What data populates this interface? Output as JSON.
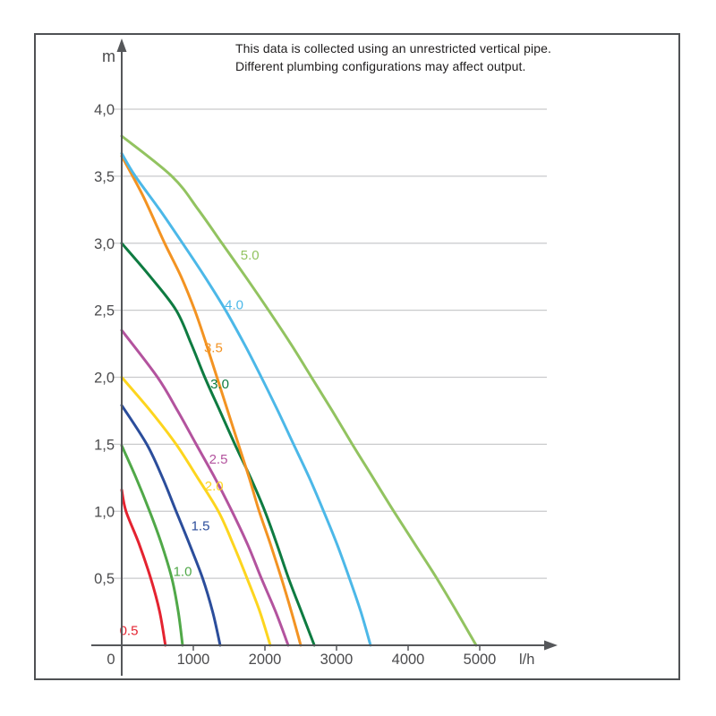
{
  "note": {
    "line1": "This data is collected using an unrestricted vertical pipe.",
    "line2": "Different plumbing configurations may affect output."
  },
  "axes": {
    "y_unit": "m",
    "x_unit": "l/h",
    "origin_label": "0",
    "y_ticks": [
      {
        "label": "4,0",
        "value": 4.0
      },
      {
        "label": "3,5",
        "value": 3.5
      },
      {
        "label": "3,0",
        "value": 3.0
      },
      {
        "label": "2,5",
        "value": 2.5
      },
      {
        "label": "2,0",
        "value": 2.0
      },
      {
        "label": "1,5",
        "value": 1.5
      },
      {
        "label": "1,0",
        "value": 1.0
      },
      {
        "label": "0,5",
        "value": 0.5
      }
    ],
    "x_ticks": [
      {
        "label": "1000",
        "value": 1000
      },
      {
        "label": "2000",
        "value": 2000
      },
      {
        "label": "3000",
        "value": 3000
      },
      {
        "label": "4000",
        "value": 4000
      },
      {
        "label": "5000",
        "value": 5000
      }
    ]
  },
  "chart_data": {
    "type": "line",
    "title": "",
    "xlabel": "l/h",
    "ylabel": "m",
    "xlim": [
      0,
      5000
    ],
    "ylim": [
      0,
      4.0
    ],
    "grid": "horizontal-only",
    "legend_position": "labels-on-curves",
    "grid_color": "#c9cacc",
    "axis_color": "#55575a",
    "tick_label_color": "#4b4b4d",
    "series": [
      {
        "name": "0.5",
        "color": "#e42330",
        "label_anchor": [
          100,
          0.11
        ],
        "points": [
          [
            0,
            1.16
          ],
          [
            60,
            1.0
          ],
          [
            240,
            0.76
          ],
          [
            405,
            0.5
          ],
          [
            530,
            0.25
          ],
          [
            610,
            0
          ]
        ]
      },
      {
        "name": "1.0",
        "color": "#50a848",
        "label_anchor": [
          850,
          0.55
        ],
        "points": [
          [
            0,
            1.49
          ],
          [
            200,
            1.25
          ],
          [
            390,
            1.0
          ],
          [
            560,
            0.75
          ],
          [
            700,
            0.5
          ],
          [
            790,
            0.25
          ],
          [
            850,
            0
          ]
        ]
      },
      {
        "name": "1.5",
        "color": "#2b4d9b",
        "label_anchor": [
          1100,
          0.89
        ],
        "points": [
          [
            0,
            1.79
          ],
          [
            350,
            1.5
          ],
          [
            570,
            1.25
          ],
          [
            760,
            1.0
          ],
          [
            950,
            0.75
          ],
          [
            1130,
            0.5
          ],
          [
            1270,
            0.25
          ],
          [
            1375,
            0
          ]
        ]
      },
      {
        "name": "2.0",
        "color": "#fdd51e",
        "label_anchor": [
          1290,
          1.19
        ],
        "points": [
          [
            0,
            2.0
          ],
          [
            400,
            1.75
          ],
          [
            760,
            1.5
          ],
          [
            1060,
            1.25
          ],
          [
            1350,
            1.0
          ],
          [
            1560,
            0.75
          ],
          [
            1750,
            0.5
          ],
          [
            1930,
            0.25
          ],
          [
            2075,
            0
          ]
        ]
      },
      {
        "name": "2.5",
        "color": "#b3539e",
        "label_anchor": [
          1350,
          1.39
        ],
        "points": [
          [
            0,
            2.35
          ],
          [
            500,
            2.0
          ],
          [
            780,
            1.75
          ],
          [
            1040,
            1.5
          ],
          [
            1300,
            1.25
          ],
          [
            1540,
            1.0
          ],
          [
            1760,
            0.75
          ],
          [
            1950,
            0.5
          ],
          [
            2150,
            0.25
          ],
          [
            2325,
            0
          ]
        ]
      },
      {
        "name": "3.0",
        "color": "#0e7b41",
        "label_anchor": [
          1370,
          1.95
        ],
        "points": [
          [
            0,
            3.0
          ],
          [
            400,
            2.75
          ],
          [
            760,
            2.5
          ],
          [
            970,
            2.25
          ],
          [
            1160,
            2.0
          ],
          [
            1370,
            1.75
          ],
          [
            1580,
            1.5
          ],
          [
            1800,
            1.25
          ],
          [
            2000,
            1.0
          ],
          [
            2170,
            0.75
          ],
          [
            2330,
            0.5
          ],
          [
            2510,
            0.25
          ],
          [
            2690,
            0
          ]
        ]
      },
      {
        "name": "3.5",
        "color": "#f39322",
        "label_anchor": [
          1280,
          2.22
        ],
        "points": [
          [
            0,
            3.65
          ],
          [
            300,
            3.35
          ],
          [
            600,
            3.0
          ],
          [
            830,
            2.75
          ],
          [
            1020,
            2.5
          ],
          [
            1180,
            2.25
          ],
          [
            1330,
            2.0
          ],
          [
            1480,
            1.75
          ],
          [
            1630,
            1.5
          ],
          [
            1780,
            1.25
          ],
          [
            1920,
            1.0
          ],
          [
            2080,
            0.75
          ],
          [
            2230,
            0.5
          ],
          [
            2370,
            0.25
          ],
          [
            2500,
            0
          ]
        ]
      },
      {
        "name": "4.0",
        "color": "#4cb8e8",
        "label_anchor": [
          1570,
          2.54
        ],
        "points": [
          [
            0,
            3.67
          ],
          [
            190,
            3.5
          ],
          [
            530,
            3.25
          ],
          [
            850,
            3.0
          ],
          [
            1160,
            2.75
          ],
          [
            1450,
            2.5
          ],
          [
            1710,
            2.25
          ],
          [
            1950,
            2.0
          ],
          [
            2180,
            1.75
          ],
          [
            2400,
            1.5
          ],
          [
            2620,
            1.25
          ],
          [
            2820,
            1.0
          ],
          [
            3010,
            0.75
          ],
          [
            3180,
            0.5
          ],
          [
            3340,
            0.25
          ],
          [
            3475,
            0
          ]
        ]
      },
      {
        "name": "5.0",
        "color": "#92c360",
        "label_anchor": [
          1790,
          2.91
        ],
        "points": [
          [
            0,
            3.8
          ],
          [
            700,
            3.5
          ],
          [
            1070,
            3.25
          ],
          [
            1400,
            3.0
          ],
          [
            1730,
            2.75
          ],
          [
            2050,
            2.5
          ],
          [
            2360,
            2.25
          ],
          [
            2650,
            2.0
          ],
          [
            2940,
            1.75
          ],
          [
            3220,
            1.5
          ],
          [
            3510,
            1.25
          ],
          [
            3800,
            1.0
          ],
          [
            4100,
            0.75
          ],
          [
            4400,
            0.5
          ],
          [
            4680,
            0.25
          ],
          [
            4950,
            0
          ]
        ]
      }
    ]
  }
}
